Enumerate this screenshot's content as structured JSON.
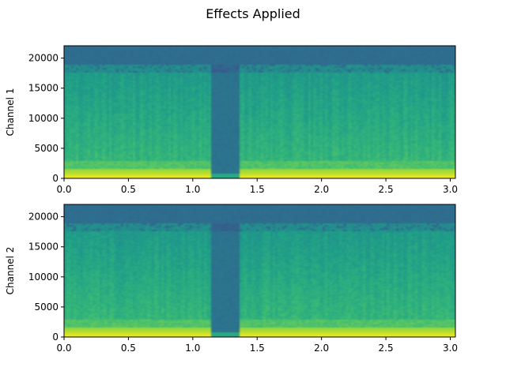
{
  "figure": {
    "title": "Effects Applied"
  },
  "chart_data": [
    {
      "type": "heatmap",
      "subtype": "spectrogram",
      "title": "",
      "xlabel": "",
      "ylabel": "Channel 1",
      "xlim": [
        0.0,
        3.04
      ],
      "ylim": [
        0,
        22050
      ],
      "x_ticks": [
        0.0,
        0.5,
        1.0,
        1.5,
        2.0,
        2.5,
        3.0
      ],
      "x_tick_labels": [
        "0.0",
        "0.5",
        "1.0",
        "1.5",
        "2.0",
        "2.5",
        "3.0"
      ],
      "y_ticks": [
        0,
        5000,
        10000,
        15000,
        20000
      ],
      "y_tick_labels": [
        "0",
        "5000",
        "10000",
        "15000",
        "20000"
      ],
      "colormap": "viridis",
      "features": {
        "silence_gap_time": [
          1.15,
          1.37
        ],
        "high_frequency_band_hz": [
          19000,
          22050
        ],
        "low_frequency_energy_hz": [
          0,
          1500
        ]
      }
    },
    {
      "type": "heatmap",
      "subtype": "spectrogram",
      "title": "",
      "xlabel": "",
      "ylabel": "Channel 2",
      "xlim": [
        0.0,
        3.04
      ],
      "ylim": [
        0,
        22050
      ],
      "x_ticks": [
        0.0,
        0.5,
        1.0,
        1.5,
        2.0,
        2.5,
        3.0
      ],
      "x_tick_labels": [
        "0.0",
        "0.5",
        "1.0",
        "1.5",
        "2.0",
        "2.5",
        "3.0"
      ],
      "y_ticks": [
        0,
        5000,
        10000,
        15000,
        20000
      ],
      "y_tick_labels": [
        "0",
        "5000",
        "10000",
        "15000",
        "20000"
      ],
      "colormap": "viridis",
      "features": {
        "silence_gap_time": [
          1.15,
          1.37
        ],
        "high_frequency_band_hz": [
          19000,
          22050
        ],
        "low_frequency_energy_hz": [
          0,
          1500
        ]
      }
    }
  ],
  "colors": {
    "colormap_low": "#31688e",
    "colormap_mid": "#21918c",
    "colormap_high": "#fde725"
  }
}
